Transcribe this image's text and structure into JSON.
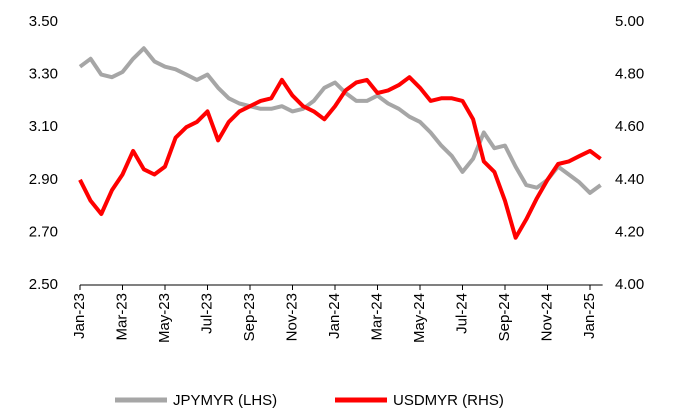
{
  "chart_data": {
    "type": "line",
    "categories": [
      "Jan-23",
      null,
      null,
      null,
      "Mar-23",
      null,
      null,
      null,
      "May-23",
      null,
      null,
      null,
      "Jul-23",
      null,
      null,
      null,
      "Sep-23",
      null,
      null,
      null,
      "Nov-23",
      null,
      null,
      null,
      "Jan-24",
      null,
      null,
      null,
      "Mar-24",
      null,
      null,
      null,
      "May-24",
      null,
      null,
      null,
      "Jul-24",
      null,
      null,
      null,
      "Sep-24",
      null,
      null,
      null,
      "Nov-24",
      null,
      null,
      null,
      "Jan-25",
      null
    ],
    "series": [
      {
        "name": "JPYMYR (LHS)",
        "color": "#a6a6a6",
        "axis": "y",
        "values": [
          3.33,
          3.36,
          3.3,
          3.29,
          3.31,
          3.36,
          3.4,
          3.35,
          3.33,
          3.32,
          3.3,
          3.28,
          3.3,
          3.25,
          3.21,
          3.19,
          3.18,
          3.17,
          3.17,
          3.18,
          3.16,
          3.17,
          3.2,
          3.25,
          3.27,
          3.23,
          3.2,
          3.2,
          3.22,
          3.19,
          3.17,
          3.14,
          3.12,
          3.08,
          3.03,
          2.99,
          2.93,
          2.98,
          3.08,
          3.02,
          3.03,
          2.95,
          2.88,
          2.87,
          2.9,
          2.95,
          2.92,
          2.89,
          2.85,
          2.88
        ]
      },
      {
        "name": "USDMYR (RHS)",
        "color": "#ff0000",
        "axis": "y2",
        "values": [
          4.4,
          4.32,
          4.27,
          4.36,
          4.42,
          4.51,
          4.44,
          4.42,
          4.45,
          4.56,
          4.6,
          4.62,
          4.66,
          4.55,
          4.62,
          4.66,
          4.68,
          4.7,
          4.71,
          4.78,
          4.72,
          4.68,
          4.66,
          4.63,
          4.68,
          4.74,
          4.77,
          4.78,
          4.73,
          4.74,
          4.76,
          4.79,
          4.75,
          4.7,
          4.71,
          4.71,
          4.7,
          4.63,
          4.47,
          4.43,
          4.32,
          4.18,
          4.25,
          4.33,
          4.4,
          4.46,
          4.47,
          4.49,
          4.51,
          4.48
        ]
      }
    ],
    "ylim": [
      2.5,
      3.5
    ],
    "yticks": [
      {
        "value": 2.5,
        "label": "2.50"
      },
      {
        "value": 2.7,
        "label": "2.70"
      },
      {
        "value": 2.9,
        "label": "2.90"
      },
      {
        "value": 3.1,
        "label": "3.10"
      },
      {
        "value": 3.3,
        "label": "3.30"
      },
      {
        "value": 3.5,
        "label": "3.50"
      }
    ],
    "y2lim": [
      4.0,
      5.0
    ],
    "y2ticks": [
      {
        "value": 4.0,
        "label": "4.00"
      },
      {
        "value": 4.2,
        "label": "4.20"
      },
      {
        "value": 4.4,
        "label": "4.40"
      },
      {
        "value": 4.6,
        "label": "4.60"
      },
      {
        "value": 4.8,
        "label": "4.80"
      },
      {
        "value": 5.0,
        "label": "5.00"
      }
    ],
    "legend": "bottom"
  }
}
